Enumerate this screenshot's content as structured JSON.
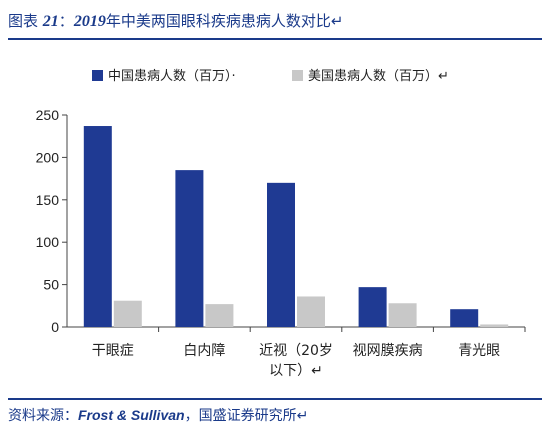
{
  "header": {
    "fig_label": "图表",
    "fig_number": "21",
    "sep": "：",
    "year": "2019",
    "title_rest": "年中美两国眼科疾病患病人数对比",
    "end_mark": "↵"
  },
  "footer": {
    "source_label": "资料来源：",
    "source_name": "Frost & Sullivan",
    "source_rest": "，国盛证券研究所",
    "end_mark": "↵"
  },
  "chart_data": {
    "type": "bar",
    "title": "",
    "xlabel": "",
    "ylabel": "",
    "ylim": [
      0,
      250
    ],
    "yticks": [
      0,
      50,
      100,
      150,
      200,
      250
    ],
    "grid": false,
    "legend_position": "top",
    "categories": [
      [
        "干眼症"
      ],
      [
        "白内障"
      ],
      [
        "近视（20岁",
        "以下）↵"
      ],
      [
        "视网膜疾病"
      ],
      [
        "青光眼"
      ]
    ],
    "series": [
      {
        "name": "中国患病人数（百万）",
        "legend_suffix": "·",
        "color": "#1f3a93",
        "values": [
          237,
          185,
          170,
          47,
          21
        ]
      },
      {
        "name": "美国患病人数（百万）",
        "legend_suffix": "↵",
        "color": "#c8c8c8",
        "values": [
          31,
          27,
          36,
          28,
          3
        ]
      }
    ]
  }
}
